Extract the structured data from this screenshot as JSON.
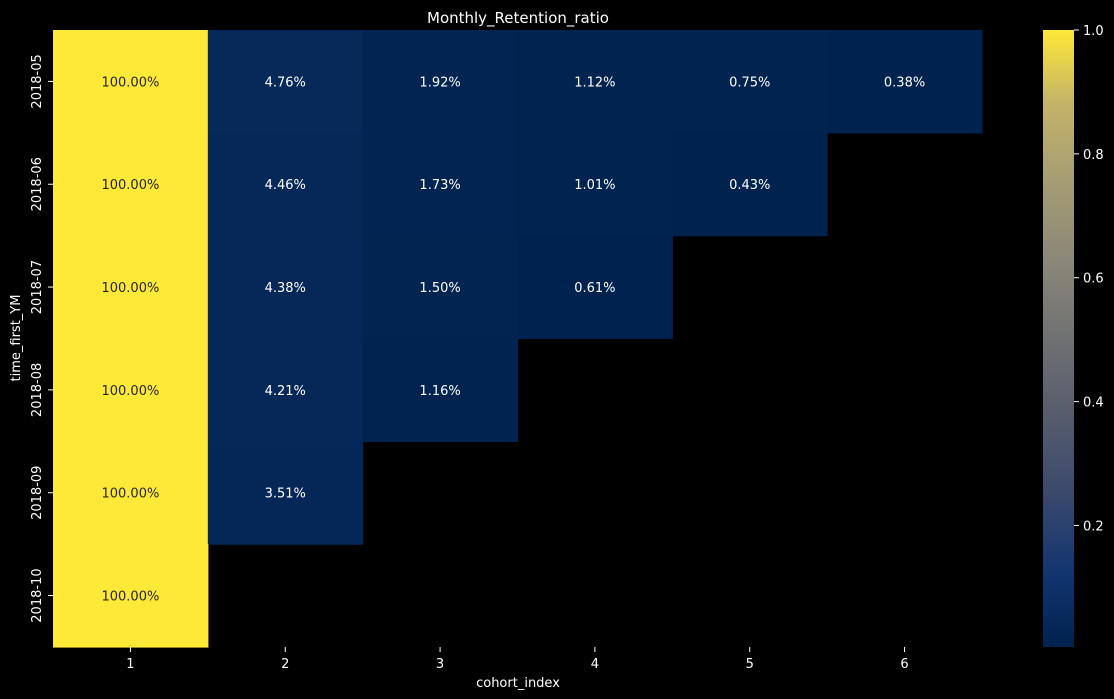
{
  "chart_data": {
    "type": "heatmap",
    "title": "Monthly_Retention_ratio",
    "xlabel": "cohort_index",
    "ylabel": "time_first_YM",
    "x": [
      "1",
      "2",
      "3",
      "4",
      "5",
      "6"
    ],
    "y": [
      "2018-05",
      "2018-06",
      "2018-07",
      "2018-08",
      "2018-09",
      "2018-10"
    ],
    "values": [
      [
        1.0,
        0.0476,
        0.0192,
        0.0112,
        0.0075,
        0.0038
      ],
      [
        1.0,
        0.0446,
        0.0173,
        0.0101,
        0.0043,
        null
      ],
      [
        1.0,
        0.0438,
        0.015,
        0.0061,
        null,
        null
      ],
      [
        1.0,
        0.0421,
        0.0116,
        null,
        null,
        null
      ],
      [
        1.0,
        0.0351,
        null,
        null,
        null,
        null
      ],
      [
        1.0,
        null,
        null,
        null,
        null,
        null
      ]
    ],
    "labels": [
      [
        "100.00%",
        "4.76%",
        "1.92%",
        "1.12%",
        "0.75%",
        "0.38%"
      ],
      [
        "100.00%",
        "4.46%",
        "1.73%",
        "1.01%",
        "0.43%",
        ""
      ],
      [
        "100.00%",
        "4.38%",
        "1.50%",
        "0.61%",
        "",
        ""
      ],
      [
        "100.00%",
        "4.21%",
        "1.16%",
        "",
        "",
        ""
      ],
      [
        "100.00%",
        "3.51%",
        "",
        "",
        "",
        ""
      ],
      [
        "100.00%",
        "",
        "",
        "",
        "",
        ""
      ]
    ],
    "colormap": "cividis",
    "colorbar": {
      "ticks": [
        0.2,
        0.4,
        0.6,
        0.8,
        1.0
      ],
      "tick_labels": [
        "0.2",
        "0.4",
        "0.6",
        "0.8",
        "1.0"
      ],
      "vmin": 0.0038,
      "vmax": 1.0
    },
    "background_color": "#000000",
    "text_color": "#ffffff"
  }
}
